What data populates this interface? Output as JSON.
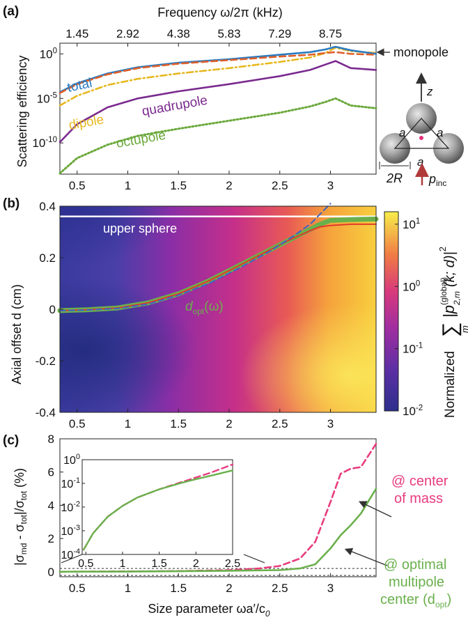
{
  "chart_data": [
    {
      "panel": "(a)",
      "type": "line",
      "top_axis_label": "Frequency ω/2π (kHz)",
      "top_ticks": [
        "1.45",
        "2.92",
        "4.38",
        "5.83",
        "7.29",
        "8.75"
      ],
      "xlabel": "",
      "ylabel": "Scattering efficiency",
      "xlim": [
        0.33,
        3.45
      ],
      "ylim_log10": [
        -13.5,
        1.2
      ],
      "yscale": "log",
      "x_ticks": [
        0.5,
        1,
        1.5,
        2,
        2.5,
        3
      ],
      "y_ticks": [
        {
          "value": 0,
          "base": "10",
          "exp": "0"
        },
        {
          "value": -5,
          "base": "10",
          "exp": "-5"
        },
        {
          "value": -10,
          "base": "10",
          "exp": "-10"
        }
      ],
      "series": [
        {
          "name": "total",
          "color": "#2a7bbf",
          "dash": "solid",
          "x": [
            0.33,
            0.5,
            0.8,
            1.1,
            1.5,
            2.0,
            2.5,
            2.8,
            2.95,
            3.05,
            3.2,
            3.45
          ],
          "y_log10": [
            -4.3,
            -3.3,
            -2.2,
            -1.5,
            -1.0,
            -0.6,
            -0.1,
            0.2,
            0.5,
            0.8,
            0.4,
            0.0
          ]
        },
        {
          "name": "monopole",
          "color": "#e0602a",
          "dash": "dash",
          "x": [
            0.33,
            0.5,
            0.8,
            1.1,
            1.5,
            2.0,
            2.5,
            2.8,
            2.95,
            3.05,
            3.2,
            3.45
          ],
          "y_log10": [
            -4.4,
            -3.4,
            -2.3,
            -1.6,
            -1.1,
            -0.7,
            -0.3,
            -0.1,
            0.1,
            0.2,
            0.0,
            -0.1
          ]
        },
        {
          "name": "dipole",
          "color": "#e6b820",
          "dash": "dashdot",
          "x": [
            0.33,
            0.5,
            0.8,
            1.1,
            1.5,
            2.0,
            2.5,
            2.8,
            2.95,
            3.05,
            3.2,
            3.45
          ],
          "y_log10": [
            -5.8,
            -4.7,
            -3.5,
            -2.8,
            -2.2,
            -1.6,
            -0.9,
            -0.4,
            0.1,
            0.7,
            0.3,
            0.1
          ]
        },
        {
          "name": "quadrupole",
          "color": "#7a2a8e",
          "dash": "solid",
          "x": [
            0.33,
            0.5,
            0.8,
            1.1,
            1.5,
            2.0,
            2.5,
            2.8,
            2.95,
            3.05,
            3.2,
            3.45
          ],
          "y_log10": [
            -9.9,
            -7.9,
            -6.0,
            -5.0,
            -4.2,
            -3.4,
            -2.5,
            -1.8,
            -1.2,
            -0.8,
            -1.6,
            -1.8
          ]
        },
        {
          "name": "octupole",
          "color": "#6aa83a",
          "dash": "dot",
          "x": [
            0.33,
            0.5,
            0.8,
            1.1,
            1.5,
            2.0,
            2.5,
            2.8,
            2.95,
            3.05,
            3.2,
            3.45
          ],
          "y_log10": [
            -13.4,
            -11.7,
            -10.2,
            -9.2,
            -8.4,
            -7.5,
            -6.6,
            -5.9,
            -5.4,
            -5.0,
            -5.8,
            -6.1
          ]
        }
      ],
      "annotations": {
        "monopole_label": "monopole",
        "geometry": {
          "z": "z",
          "a1": "a",
          "a2": "a",
          "a3": "a",
          "two_r": "2R",
          "p": "p",
          "p_sub": "inc"
        }
      }
    },
    {
      "panel": "(b)",
      "type": "heatmap",
      "xlabel": "",
      "ylabel": "Axial offset d (cm)",
      "xlim": [
        0.33,
        3.45
      ],
      "ylim": [
        -0.4,
        0.4
      ],
      "x_ticks": [
        0.5,
        1,
        1.5,
        2,
        2.5,
        3
      ],
      "y_ticks": [
        {
          "value": 0.4,
          "label": "0.4"
        },
        {
          "value": 0.2,
          "label": "0.2"
        },
        {
          "value": 0,
          "label": "0"
        },
        {
          "value": -0.2,
          "label": "-0.2"
        },
        {
          "value": -0.4,
          "label": "-0.4"
        }
      ],
      "upper_sphere_d": 0.36,
      "upper_sphere_label": "upper sphere",
      "curve_label": "d",
      "curve_label_sub": "opt",
      "curve_label_suffix": "(ω)",
      "colorbar": {
        "scale": "log",
        "range_log10": [
          -2,
          1.2
        ],
        "ticks": [
          {
            "value": 1,
            "base": "10",
            "exp": "1"
          },
          {
            "value": 0,
            "base": "10",
            "exp": "0"
          },
          {
            "value": -1,
            "base": "10",
            "exp": "-1"
          },
          {
            "value": -2,
            "base": "10",
            "exp": "-2"
          }
        ],
        "label_prefix": "Normalized",
        "label_sum": "∑",
        "label_index": "m",
        "label_body": "|p",
        "label_sup": "(global)",
        "label_sub": "2,m",
        "label_args": "(k; d)|",
        "label_power": "2"
      },
      "series": [
        {
          "name": "d_opt",
          "color": "#6ab04c",
          "x": [
            0.33,
            0.6,
            0.9,
            1.2,
            1.5,
            1.8,
            2.1,
            2.4,
            2.6,
            2.8,
            2.9,
            3.0,
            3.2,
            3.45
          ],
          "y": [
            -0.005,
            -0.002,
            0.005,
            0.025,
            0.06,
            0.11,
            0.17,
            0.23,
            0.27,
            0.31,
            0.33,
            0.345,
            0.348,
            0.35
          ]
        },
        {
          "name": "solid red",
          "color": "#e03a2a",
          "x": [
            0.33,
            0.6,
            0.9,
            1.2,
            1.5,
            1.8,
            2.1,
            2.4,
            2.6,
            2.8,
            2.9,
            3.0,
            3.2,
            3.45
          ],
          "y": [
            -0.005,
            -0.002,
            0.005,
            0.025,
            0.06,
            0.11,
            0.17,
            0.23,
            0.27,
            0.305,
            0.32,
            0.325,
            0.33,
            0.33
          ]
        },
        {
          "name": "dashed blue",
          "color": "#3c64c8",
          "x": [
            0.33,
            0.6,
            0.9,
            1.2,
            1.5,
            1.8,
            2.1,
            2.4,
            2.6,
            2.8,
            2.9,
            2.95,
            3.0
          ],
          "y": [
            -0.005,
            -0.003,
            0.003,
            0.02,
            0.055,
            0.1,
            0.16,
            0.225,
            0.275,
            0.33,
            0.37,
            0.39,
            0.41
          ]
        }
      ]
    },
    {
      "panel": "(c)",
      "type": "line",
      "xlabel": "Size parameter ωa′/c",
      "xlabel_sub": "0",
      "ylabel": "|σmd - σtot|/σtot (%)",
      "ylabel_sigma": "σ",
      "ylabel_md": "md",
      "ylabel_tot": "tot",
      "ylabel_mid": " - ",
      "ylabel_unit": " (%)",
      "xlim": [
        0.33,
        3.45
      ],
      "ylim": [
        -0.3,
        8
      ],
      "x_ticks": [
        0.5,
        1,
        1.5,
        2,
        2.5,
        3
      ],
      "y_ticks": [
        0,
        2,
        4,
        6,
        8
      ],
      "series": [
        {
          "name": "@ center of mass",
          "color": "#e83c7e",
          "dash": "dash",
          "x": [
            0.33,
            1.0,
            1.5,
            2.0,
            2.3,
            2.5,
            2.7,
            2.85,
            3.0,
            3.1,
            3.2,
            3.3,
            3.45
          ],
          "y": [
            0.0,
            0.02,
            0.04,
            0.1,
            0.2,
            0.35,
            0.8,
            1.8,
            4.2,
            5.9,
            6.2,
            6.3,
            7.7
          ]
        },
        {
          "name": "@ optimal multipole center (d_opt)",
          "color": "#6ab04c",
          "dash": "solid",
          "x": [
            0.33,
            1.0,
            1.5,
            2.0,
            2.5,
            2.7,
            2.85,
            3.0,
            3.1,
            3.2,
            3.3,
            3.45
          ],
          "y": [
            0.0,
            0.01,
            0.03,
            0.06,
            0.1,
            0.2,
            0.45,
            1.4,
            2.2,
            2.8,
            3.5,
            5.0
          ]
        }
      ],
      "annotations": {
        "com_line1": "@ center",
        "com_line2": "of mass",
        "opt_line1": "@ optimal",
        "opt_line2": "multipole",
        "opt_line3_prefix": "center (d",
        "opt_line3_sub": "opt",
        "opt_line3_suffix": ")"
      },
      "inset": {
        "xlim": [
          0.45,
          2.5
        ],
        "ylim_log10": [
          -4,
          0
        ],
        "yscale": "log",
        "x_ticks": [
          0.5,
          1,
          1.5,
          2,
          2.5
        ],
        "y_ticks": [
          {
            "value": 0,
            "base": "10",
            "exp": "0"
          },
          {
            "value": -1,
            "base": "10",
            "exp": "-1"
          },
          {
            "value": -2,
            "base": "10",
            "exp": "-2"
          },
          {
            "value": -3,
            "base": "10",
            "exp": "-3"
          },
          {
            "value": -4,
            "base": "10",
            "exp": "-4"
          }
        ],
        "series": [
          {
            "name": "@ center of mass",
            "color": "#e83c7e",
            "dash": "dash",
            "x": [
              0.47,
              0.6,
              0.8,
              1.0,
              1.2,
              1.5,
              1.8,
              2.0,
              2.2,
              2.5
            ],
            "y_log10": [
              -3.8,
              -3.1,
              -2.4,
              -1.95,
              -1.6,
              -1.25,
              -0.95,
              -0.75,
              -0.55,
              -0.2
            ]
          },
          {
            "name": "@ optimal multipole center (d_opt)",
            "color": "#6ab04c",
            "dash": "solid",
            "x": [
              0.47,
              0.6,
              0.8,
              1.0,
              1.2,
              1.5,
              1.8,
              2.0,
              2.2,
              2.5
            ],
            "y_log10": [
              -3.8,
              -3.1,
              -2.4,
              -1.95,
              -1.6,
              -1.25,
              -0.98,
              -0.82,
              -0.68,
              -0.45
            ]
          }
        ]
      }
    }
  ]
}
